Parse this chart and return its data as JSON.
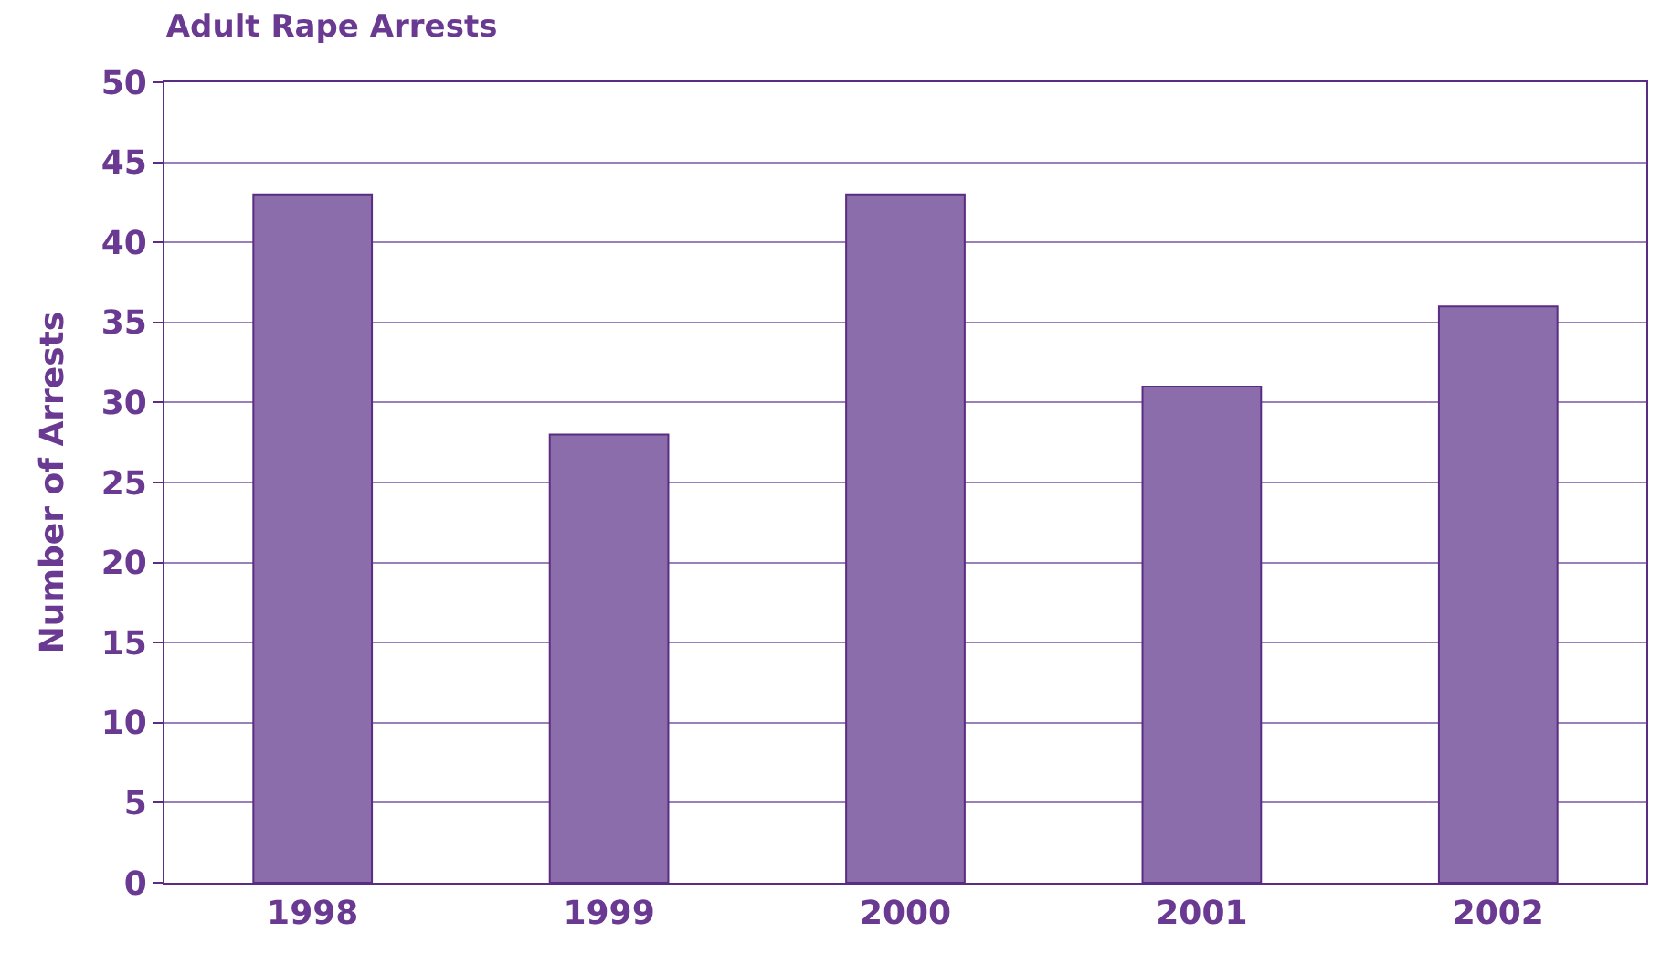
{
  "chart_data": {
    "type": "bar",
    "title": "Adult Rape Arrests",
    "ylabel": "Number of Arrests",
    "categories": [
      "1998",
      "1999",
      "2000",
      "2001",
      "2002"
    ],
    "values": [
      43,
      28,
      43,
      31,
      36
    ],
    "color": "#8b6dab",
    "ylim": [
      0,
      50
    ],
    "yticks": [
      0,
      5,
      10,
      15,
      20,
      25,
      30,
      35,
      40,
      45,
      50
    ],
    "grid": "y"
  }
}
